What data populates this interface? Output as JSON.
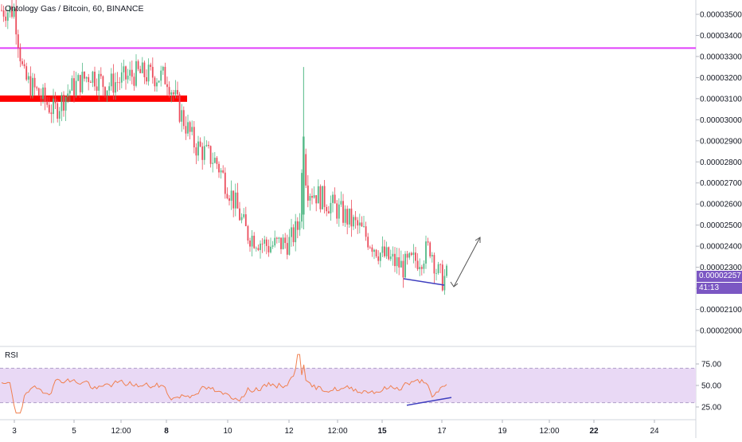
{
  "header": {
    "title": "Ontology Gas / Bitcoin, 60, BINANCE"
  },
  "price_axis": {
    "ticks": [
      "0.00003500",
      "0.00003400",
      "0.00003300",
      "0.00003200",
      "0.00003100",
      "0.00003000",
      "0.00002900",
      "0.00002800",
      "0.00002700",
      "0.00002600",
      "0.00002500",
      "0.00002400",
      "0.00002300",
      "0.00002200",
      "0.00002100",
      "0.00002000"
    ],
    "current_price": "0.00002257",
    "countdown": "41:13"
  },
  "time_axis": {
    "labels": [
      "3",
      "5",
      "12:00",
      "8",
      "10",
      "12",
      "12:00",
      "15",
      "17",
      "19",
      "12:00",
      "22",
      "24"
    ]
  },
  "rsi_panel": {
    "label": "RSI",
    "ticks": [
      "75.00",
      "50.00",
      "25.00"
    ]
  },
  "colors": {
    "up": "#53b987",
    "down": "#eb4d5c",
    "resistance_line": "#e040fb",
    "support_zone": "#ff0000",
    "divergence_line": "#3f3fbf",
    "rsi_line": "#f08050",
    "rsi_band": "#e9d9f5",
    "label_bg": "#7b57c3"
  },
  "chart_data": {
    "type": "candlestick",
    "symbol": "Ontology Gas / Bitcoin",
    "interval": "60",
    "exchange": "BINANCE",
    "ylim": [
      1.93e-05,
      3.57e-05
    ],
    "last_price": 2.257e-05,
    "horizontal_levels": [
      3.34e-05,
      3.1e-05
    ],
    "price_path": [
      [
        3,
        3.52e-05
      ],
      [
        3.3,
        3.2e-05
      ],
      [
        4.3,
        3.04e-05
      ],
      [
        4.8,
        3.14e-05
      ],
      [
        5.5,
        3.22e-05
      ],
      [
        6.0,
        3.16e-05
      ],
      [
        7.0,
        3.22e-05
      ],
      [
        8.0,
        3.2e-05
      ],
      [
        8.4,
        3.04e-05
      ],
      [
        8.9,
        2.88e-05
      ],
      [
        9.6,
        2.8e-05
      ],
      [
        10.1,
        2.64e-05
      ],
      [
        10.6,
        2.46e-05
      ],
      [
        11.3,
        2.4e-05
      ],
      [
        12.0,
        2.42e-05
      ],
      [
        12.3,
        2.5e-05
      ],
      [
        12.45,
        2.9e-05
      ],
      [
        12.55,
        2.68e-05
      ],
      [
        13.5,
        2.58e-05
      ],
      [
        14.3,
        2.48e-05
      ],
      [
        15.0,
        2.36e-05
      ],
      [
        15.7,
        2.3e-05
      ],
      [
        16.3,
        2.35e-05
      ],
      [
        16.6,
        2.4e-05
      ],
      [
        16.8,
        2.28e-05
      ],
      [
        17.0,
        2.24e-05
      ],
      [
        17.1,
        2.257e-05
      ]
    ],
    "rsi": {
      "ticks": [
        25,
        50,
        75
      ],
      "band": [
        30,
        70
      ],
      "ylim": [
        10,
        90
      ]
    }
  }
}
